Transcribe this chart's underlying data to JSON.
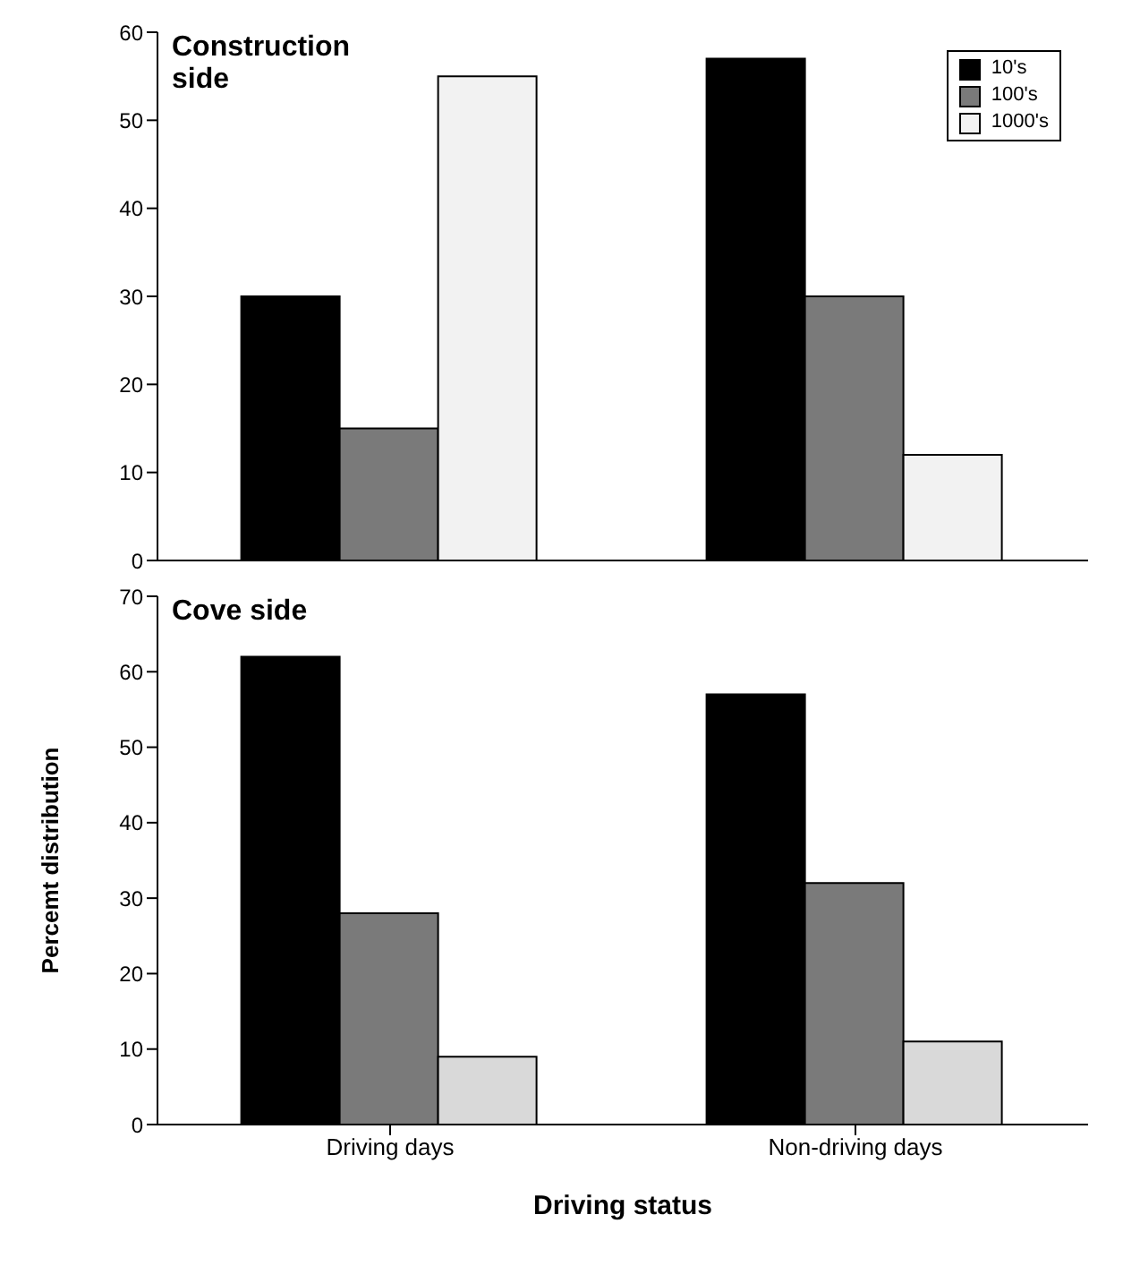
{
  "chart_data": [
    {
      "type": "bar",
      "title": "Construction side",
      "categories": [
        null,
        null
      ],
      "series": [
        {
          "name": "10's",
          "color": "#000000",
          "values": [
            30,
            57
          ]
        },
        {
          "name": "100's",
          "color": "#7a7a7a",
          "values": [
            15,
            30
          ]
        },
        {
          "name": "1000's",
          "color": "#f2f2f2",
          "values": [
            55,
            12
          ]
        }
      ],
      "ylim": [
        0,
        60
      ],
      "yticks": [
        0,
        10,
        20,
        30,
        40,
        50,
        60
      ],
      "grid": false,
      "legend": "top right",
      "tick_labels": "y"
    },
    {
      "type": "bar",
      "title": "Cove side",
      "xlabel": "Driving status",
      "ylabel": "Percemt distribution",
      "categories": [
        "Driving days",
        "Non-driving days"
      ],
      "series": [
        {
          "color": "#000000",
          "values": [
            62,
            57
          ]
        },
        {
          "color": "#7a7a7a",
          "values": [
            28,
            32
          ]
        },
        {
          "color": "#d9d9d9",
          "values": [
            9,
            11
          ]
        }
      ],
      "ylim": [
        0,
        70
      ],
      "yticks": [
        0,
        10,
        20,
        30,
        40,
        50,
        60,
        70
      ],
      "grid": false
    }
  ]
}
